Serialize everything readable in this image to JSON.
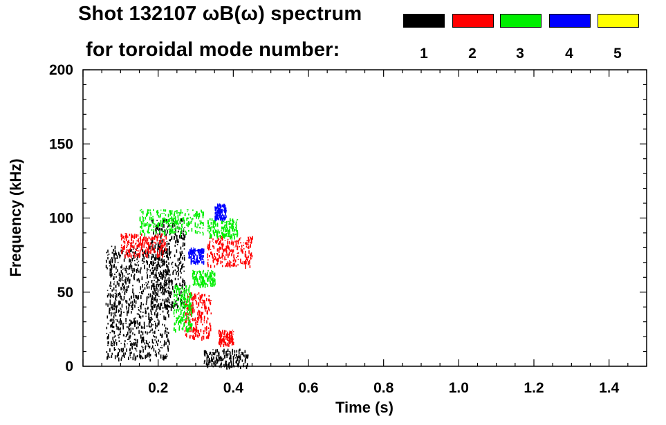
{
  "header": {
    "title_line1": "Shot 132107 ωB(ω) spectrum",
    "title_line2": "for toroidal mode number:"
  },
  "legend": [
    {
      "label": "1",
      "color": "#000000"
    },
    {
      "label": "2",
      "color": "#ff0000"
    },
    {
      "label": "3",
      "color": "#00ee00"
    },
    {
      "label": "4",
      "color": "#0000ff"
    },
    {
      "label": "5",
      "color": "#ffff00"
    }
  ],
  "chart_data": {
    "type": "scatter",
    "title": "Shot 132107 ωB(ω) spectrum",
    "xlabel": "Time (s)",
    "ylabel": "Frequency (kHz)",
    "xlim": [
      0.0,
      1.5
    ],
    "ylim": [
      0,
      200
    ],
    "x_ticks": [
      "0.2",
      "0.4",
      "0.6",
      "0.8",
      "1.0",
      "1.2",
      "1.4"
    ],
    "y_ticks": [
      "0",
      "50",
      "100",
      "150",
      "200"
    ],
    "series": [
      {
        "name": "n=1",
        "color": "#000000",
        "regions": [
          {
            "t": [
              0.06,
              0.23
            ],
            "f": [
              5,
              82
            ]
          },
          {
            "t": [
              0.18,
              0.27
            ],
            "f": [
              40,
              100
            ]
          },
          {
            "t": [
              0.32,
              0.44
            ],
            "f": [
              0,
              12
            ]
          }
        ]
      },
      {
        "name": "n=2",
        "color": "#ff0000",
        "regions": [
          {
            "t": [
              0.1,
              0.22
            ],
            "f": [
              75,
              90
            ]
          },
          {
            "t": [
              0.27,
              0.34
            ],
            "f": [
              20,
              50
            ]
          },
          {
            "t": [
              0.33,
              0.45
            ],
            "f": [
              68,
              88
            ]
          },
          {
            "t": [
              0.36,
              0.4
            ],
            "f": [
              15,
              25
            ]
          }
        ]
      },
      {
        "name": "n=3",
        "color": "#00ee00",
        "regions": [
          {
            "t": [
              0.15,
              0.32
            ],
            "f": [
              90,
              106
            ]
          },
          {
            "t": [
              0.24,
              0.29
            ],
            "f": [
              25,
              55
            ]
          },
          {
            "t": [
              0.29,
              0.35
            ],
            "f": [
              55,
              65
            ]
          },
          {
            "t": [
              0.33,
              0.41
            ],
            "f": [
              88,
              100
            ]
          }
        ]
      },
      {
        "name": "n=4",
        "color": "#0000ff",
        "regions": [
          {
            "t": [
              0.28,
              0.32
            ],
            "f": [
              70,
              80
            ]
          },
          {
            "t": [
              0.35,
              0.38
            ],
            "f": [
              100,
              110
            ]
          }
        ]
      },
      {
        "name": "n=5",
        "color": "#ffff00",
        "regions": []
      }
    ]
  }
}
